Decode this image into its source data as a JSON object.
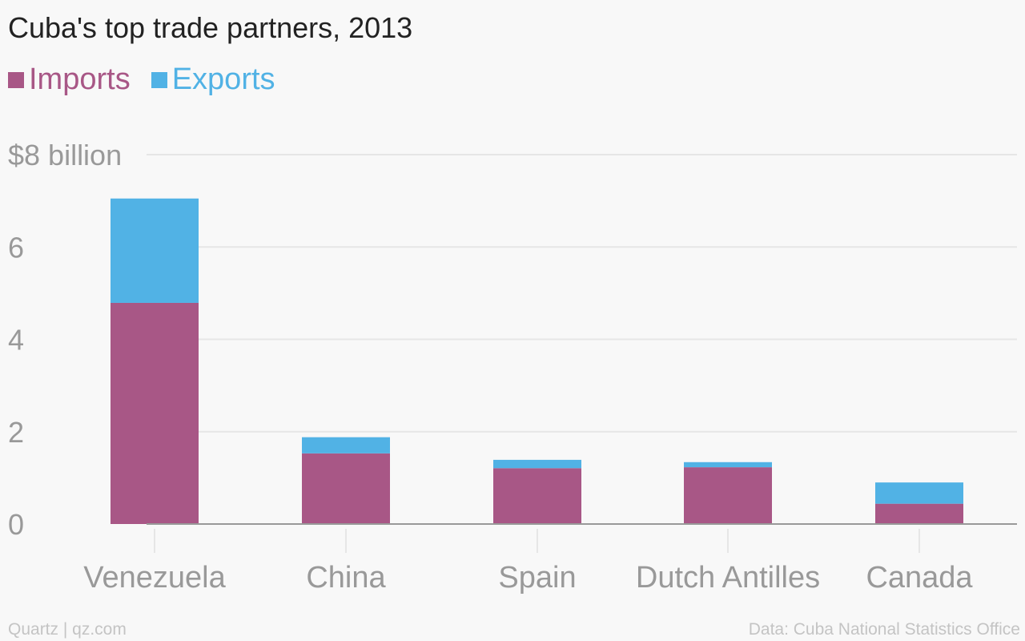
{
  "title": "Cuba's top trade partners, 2013",
  "footer": {
    "source_left": "Quartz | qz.com",
    "source_right": "Data: Cuba National Statistics Office"
  },
  "colors": {
    "imports": "#a85786",
    "exports": "#51b2e5",
    "grid": "#e6e6e6",
    "axis": "#999999",
    "tick_text": "#999999"
  },
  "chart_data": {
    "type": "bar",
    "stacked": true,
    "title": "Cuba's top trade partners, 2013",
    "categories": [
      "Venezuela",
      "China",
      "Spain",
      "Dutch Antilles",
      "Canada"
    ],
    "series": [
      {
        "name": "Imports",
        "values": [
          4.79,
          1.53,
          1.21,
          1.23,
          0.44
        ]
      },
      {
        "name": "Exports",
        "values": [
          2.26,
          0.35,
          0.18,
          0.11,
          0.46
        ]
      }
    ],
    "ylim": [
      0,
      8
    ],
    "yticks": [
      0,
      2,
      4,
      6,
      8
    ],
    "ytick_labels": [
      "0",
      "2",
      "4",
      "6",
      "$8 billion"
    ],
    "grid": true,
    "legend_position": "top-left"
  }
}
